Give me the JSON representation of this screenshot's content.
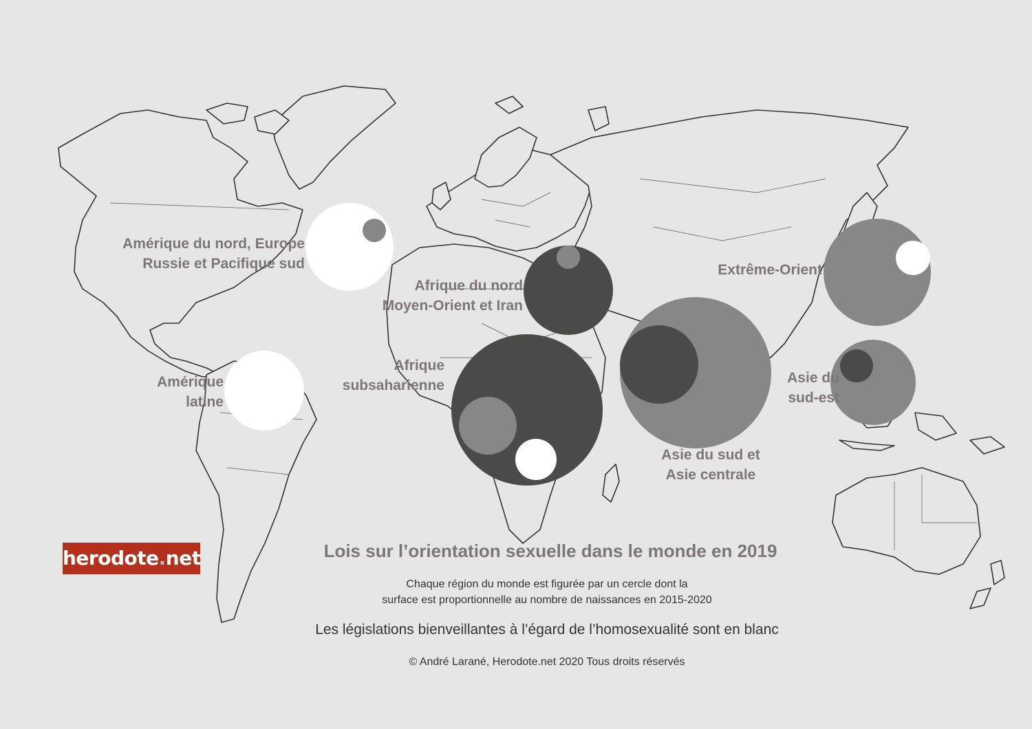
{
  "map": {
    "title": "Lois sur l’orientation sexuelle dans le monde en 2019",
    "subtitle_line1": "Chaque région du monde est figurée par un cercle dont la",
    "subtitle_line2": "surface est proportionnelle au nombre de naissances en 2015-2020",
    "legend": "Les législations bienveillantes à l’égard de l’homosexualité sont en blanc",
    "copyright": "© André Larané, Herodote.net 2020 Tous droits réservés",
    "logo": {
      "part1": "herodote",
      "dot": ".",
      "part2": "net"
    },
    "colors": {
      "background": "#e6e6e6",
      "friendly": "#ffffff",
      "restrictive_grey": "#868786",
      "very_restrictive_dark": "#4a4b48",
      "label": "#7b7677",
      "logo_bg": "#b5301c"
    },
    "regions": [
      {
        "id": "north",
        "line1": "Amérique du nord, Europe",
        "line2": "Russie et Pacifique sud"
      },
      {
        "id": "latam",
        "line1": "Amérique",
        "line2": "latine"
      },
      {
        "id": "mena",
        "line1": "Afrique du nord",
        "line2": "Moyen-Orient et Iran"
      },
      {
        "id": "ssa",
        "line1": "Afrique",
        "line2": "subsaharienne"
      },
      {
        "id": "far-east",
        "line1": "Extrême-Orient",
        "line2": ""
      },
      {
        "id": "south-asia",
        "line1": "Asie du sud et",
        "line2": "Asie centrale"
      },
      {
        "id": "sea",
        "line1": "Asie du",
        "line2": "sud-est"
      }
    ]
  }
}
